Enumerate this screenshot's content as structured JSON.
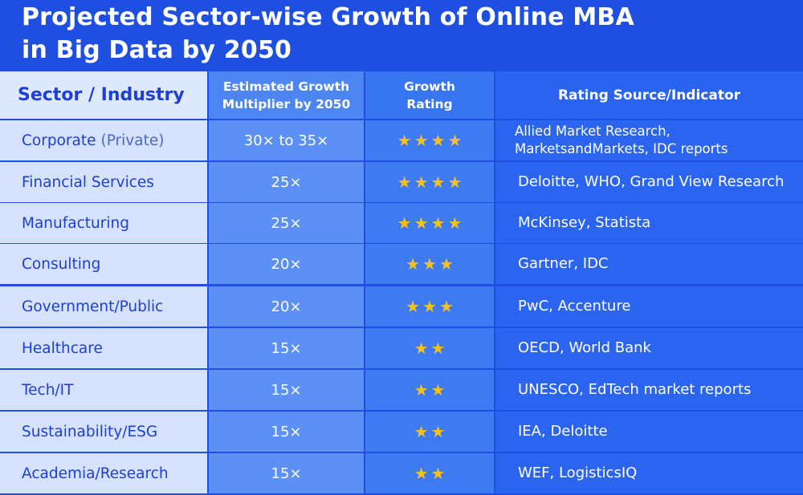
{
  "title": {
    "line1": "Projected Sector-wise Growth of Online MBA",
    "line2": "in Big Data by 2050"
  },
  "headers": {
    "sector": "Sector / Industry",
    "multiplier_line1": "Estimated Growth",
    "multiplier_line2": "Multiplier by 2050",
    "rating_line1": "Growth",
    "rating_line2": "Rating",
    "source": "Rating Source/Indicator"
  },
  "star_icon": "star-icon",
  "star_color": "#f6c11f",
  "rows": [
    {
      "sector": "Corporate",
      "sector_note": "(Private)",
      "multiplier": "30× to 35×",
      "rating": 4,
      "source_line1": "Allied Market Research,",
      "source_line2": "MarketsandMarkets, IDC reports"
    },
    {
      "sector": "Financial Services",
      "multiplier": "25×",
      "rating": 4,
      "source": "Deloitte, WHO, Grand View Research"
    },
    {
      "sector": "Manufacturing",
      "multiplier": "25×",
      "rating": 4,
      "source": "McKinsey, Statista"
    },
    {
      "sector": "Consulting",
      "multiplier": "20×",
      "rating": 3,
      "source": "Gartner, IDC"
    },
    {
      "sector": "Government/Public",
      "multiplier": "20×",
      "rating": 3,
      "source": "PwC, Accenture"
    },
    {
      "sector": "Healthcare",
      "multiplier": "15×",
      "rating": 2,
      "source": "OECD, World Bank"
    },
    {
      "sector": "Tech/IT",
      "multiplier": "15×",
      "rating": 2,
      "source": "UNESCO, EdTech market reports"
    },
    {
      "sector": "Sustainability/ESG",
      "multiplier": "15×",
      "rating": 2,
      "source": "IEA, Deloitte"
    },
    {
      "sector": "Academia/Research",
      "multiplier": "15×",
      "rating": 2,
      "source": "WEF, LogisticsIQ"
    }
  ]
}
